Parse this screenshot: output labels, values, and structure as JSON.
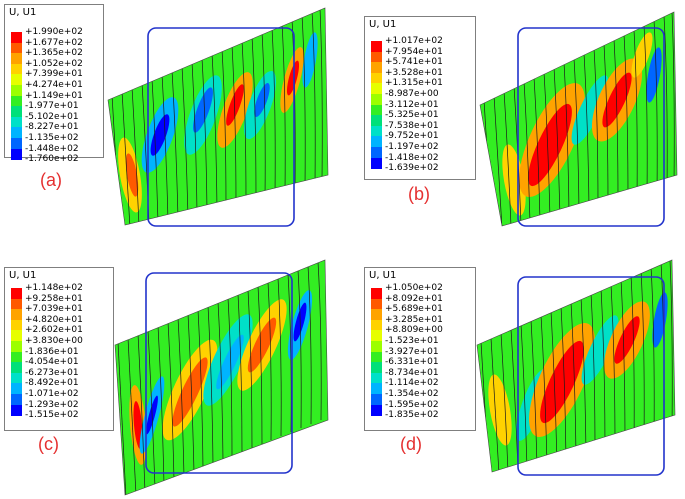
{
  "colors": {
    "scale": [
      "#ff0000",
      "#ff5a00",
      "#ffa300",
      "#ffd200",
      "#e6ff00",
      "#9cff00",
      "#33ee22",
      "#00e07a",
      "#00e0c8",
      "#00b4ff",
      "#0066ff",
      "#0000ff"
    ],
    "frame": "#2233cc",
    "label": "#e53030",
    "legend_border": "#7f7f7f"
  },
  "panels": [
    {
      "id": "a",
      "label": "(a)",
      "legend_title": "U, U1",
      "legend_values": [
        "+1.990e+02",
        "+1.677e+02",
        "+1.365e+02",
        "+1.052e+02",
        "+7.399e+01",
        "+4.274e+01",
        "+1.149e+01",
        "-1.977e+01",
        "-5.102e+01",
        "-8.227e+01",
        "-1.135e+02",
        "-1.448e+02",
        "-1.760e+02"
      ]
    },
    {
      "id": "b",
      "label": "(b)",
      "legend_title": "U, U1",
      "legend_values": [
        "+1.017e+02",
        "+7.954e+01",
        "+5.741e+01",
        "+3.528e+01",
        "+1.315e+01",
        "-8.987e+00",
        "-3.112e+01",
        "-5.325e+01",
        "-7.538e+01",
        "-9.752e+01",
        "-1.197e+02",
        "-1.418e+02",
        "-1.639e+02"
      ]
    },
    {
      "id": "c",
      "label": "(c)",
      "legend_title": "U, U1",
      "legend_values": [
        "+1.148e+02",
        "+9.258e+01",
        "+7.039e+01",
        "+4.820e+01",
        "+2.602e+01",
        "+3.830e+00",
        "-1.836e+01",
        "-4.054e+01",
        "-6.273e+01",
        "-8.492e+01",
        "-1.071e+02",
        "-1.293e+02",
        "-1.515e+02"
      ]
    },
    {
      "id": "d",
      "label": "(d)",
      "legend_title": "U, U1",
      "legend_values": [
        "+1.050e+02",
        "+8.092e+01",
        "+5.689e+01",
        "+3.285e+01",
        "+8.809e+00",
        "-1.523e+01",
        "-3.927e+01",
        "-6.331e+01",
        "-8.734e+01",
        "-1.114e+02",
        "-1.354e+02",
        "-1.595e+02",
        "-1.835e+02"
      ]
    }
  ]
}
